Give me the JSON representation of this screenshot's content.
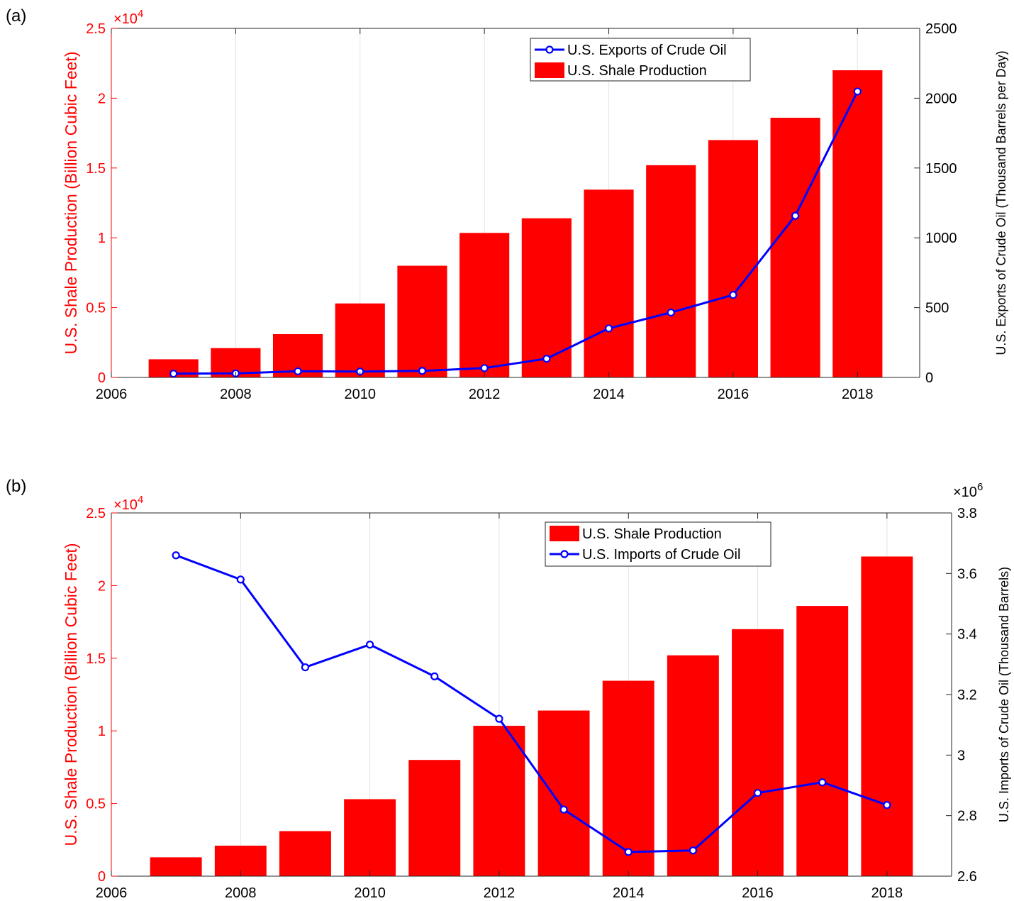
{
  "chart_data": [
    {
      "panel_label": "(a)",
      "type": "bar+line",
      "x_ticks": [
        "2006",
        "2008",
        "2010",
        "2012",
        "2014",
        "2016",
        "2018"
      ],
      "xlim": [
        2006,
        2019
      ],
      "grid": "vertical",
      "legend_position": "top-center",
      "left_axis": {
        "label": "U.S. Shale Production (Billion Cubic Feet)",
        "multiplier": "×10",
        "multiplier_exp": "4",
        "ticks": [
          "0",
          "0.5",
          "1",
          "1.5",
          "2",
          "2.5"
        ],
        "ylim": [
          0,
          25000
        ],
        "color": "#ff0000"
      },
      "right_axis": {
        "label": "U.S. Exports of Crude Oil (Thousand Barrels per Day)",
        "ticks": [
          "0",
          "500",
          "1000",
          "1500",
          "2000",
          "2500"
        ],
        "ylim": [
          0,
          2500
        ],
        "color": "#000000"
      },
      "series": [
        {
          "name": "U.S. Shale Production",
          "kind": "bar",
          "axis": "left",
          "color": "#ff0000",
          "x": [
            2007,
            2008,
            2009,
            2010,
            2011,
            2012,
            2013,
            2014,
            2015,
            2016,
            2017,
            2018
          ],
          "values": [
            1300,
            2100,
            3100,
            5300,
            8000,
            10350,
            11400,
            13450,
            15200,
            17000,
            18600,
            22000
          ]
        },
        {
          "name": "U.S. Exports of Crude Oil",
          "kind": "line",
          "axis": "right",
          "color": "#0000ff",
          "x": [
            2007,
            2008,
            2009,
            2010,
            2011,
            2012,
            2013,
            2014,
            2015,
            2016,
            2017,
            2018
          ],
          "values": [
            27,
            29,
            44,
            42,
            47,
            67,
            134,
            351,
            465,
            591,
            1158,
            2048
          ]
        }
      ],
      "legend": [
        "U.S. Exports of Crude Oil",
        "U.S. Shale Production"
      ]
    },
    {
      "panel_label": "(b)",
      "type": "bar+line",
      "x_ticks": [
        "2006",
        "2008",
        "2010",
        "2012",
        "2014",
        "2016",
        "2018"
      ],
      "xlim": [
        2006,
        2019
      ],
      "grid": "vertical",
      "legend_position": "top-center",
      "left_axis": {
        "label": "U.S. Shale Production (Billion Cubic Feet)",
        "multiplier": "×10",
        "multiplier_exp": "4",
        "ticks": [
          "0",
          "0.5",
          "1",
          "1.5",
          "2",
          "2.5"
        ],
        "ylim": [
          0,
          25000
        ],
        "color": "#ff0000"
      },
      "right_axis": {
        "label": "U.S. Imports of Crude Oil (Thousand Barrels)",
        "multiplier": "×10",
        "multiplier_exp": "6",
        "ticks": [
          "2.6",
          "2.8",
          "3",
          "3.2",
          "3.4",
          "3.6",
          "3.8"
        ],
        "ylim": [
          2600000,
          3800000
        ],
        "color": "#000000"
      },
      "series": [
        {
          "name": "U.S. Shale Production",
          "kind": "bar",
          "axis": "left",
          "color": "#ff0000",
          "x": [
            2007,
            2008,
            2009,
            2010,
            2011,
            2012,
            2013,
            2014,
            2015,
            2016,
            2017,
            2018
          ],
          "values": [
            1300,
            2100,
            3100,
            5300,
            8000,
            10350,
            11400,
            13450,
            15200,
            17000,
            18600,
            22000
          ]
        },
        {
          "name": "U.S. Imports of Crude Oil",
          "kind": "line",
          "axis": "right",
          "color": "#0000ff",
          "x": [
            2007,
            2008,
            2009,
            2010,
            2011,
            2012,
            2013,
            2014,
            2015,
            2016,
            2017,
            2018
          ],
          "values": [
            3660000,
            3580000,
            3290000,
            3365000,
            3260000,
            3120000,
            2820000,
            2680000,
            2685000,
            2875000,
            2910000,
            2835000
          ]
        }
      ],
      "legend": [
        "U.S. Shale Production",
        "U.S. Imports of Crude Oil"
      ]
    }
  ]
}
